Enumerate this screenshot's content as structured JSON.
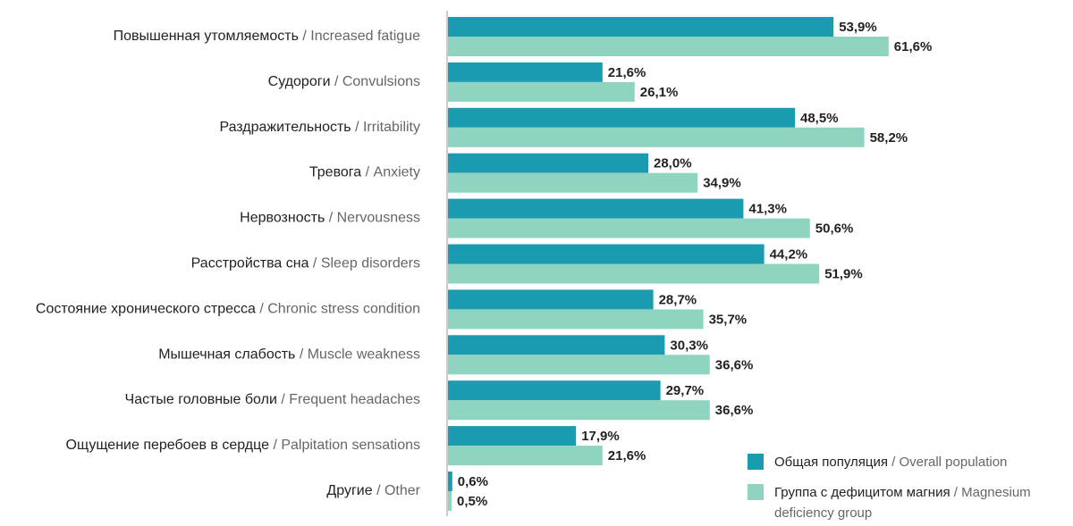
{
  "chart_data": {
    "type": "bar",
    "orientation": "horizontal",
    "title": "",
    "xlabel": "",
    "ylabel": "",
    "xlim": [
      0,
      70
    ],
    "grid": false,
    "legend_position": "bottom-right",
    "colors": {
      "overall": "#1a9bb0",
      "deficiency": "#8fd4c0",
      "axis": "#999999"
    },
    "categories": [
      {
        "ru": "Повышенная утомляемость",
        "en": "Increased fatigue"
      },
      {
        "ru": "Судороги",
        "en": "Convulsions"
      },
      {
        "ru": "Раздражительность",
        "en": "Irritability"
      },
      {
        "ru": "Тревога",
        "en": "Anxiety"
      },
      {
        "ru": "Нервозность",
        "en": "Nervousness"
      },
      {
        "ru": "Расстройства сна",
        "en": "Sleep disorders"
      },
      {
        "ru": "Состояние хронического стресса",
        "en": "Chronic stress condition"
      },
      {
        "ru": "Мышечная слабость",
        "en": "Muscle weakness"
      },
      {
        "ru": "Частые головные боли",
        "en": "Frequent headaches"
      },
      {
        "ru": "Ощущение перебоев в сердце",
        "en": "Palpitation sensations"
      },
      {
        "ru": "Другие",
        "en": "Other"
      }
    ],
    "series": [
      {
        "key": "overall",
        "legend_ru": "Общая популяция",
        "legend_en": "Overall population",
        "values": [
          53.9,
          21.6,
          48.5,
          28.0,
          41.3,
          44.2,
          28.7,
          30.3,
          29.7,
          17.9,
          0.6
        ],
        "labels": [
          "53,9%",
          "21,6%",
          "48,5%",
          "28,0%",
          "41,3%",
          "44,2%",
          "28,7%",
          "30,3%",
          "29,7%",
          "17,9%",
          "0,6%"
        ]
      },
      {
        "key": "deficiency",
        "legend_ru": "Группа с дефицитом магния",
        "legend_en_line1": "Magnesium",
        "legend_en_line2": "deficiency group",
        "values": [
          61.6,
          26.1,
          58.2,
          34.9,
          50.6,
          51.9,
          35.7,
          36.6,
          36.6,
          21.6,
          0.5
        ],
        "labels": [
          "61,6%",
          "26,1%",
          "58,2%",
          "34,9%",
          "50,6%",
          "51,9%",
          "35,7%",
          "36,6%",
          "36,6%",
          "21,6%",
          "0,5%"
        ]
      }
    ]
  }
}
